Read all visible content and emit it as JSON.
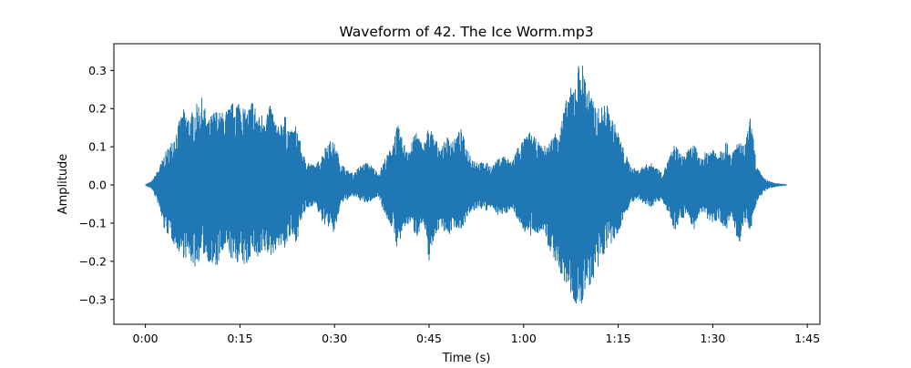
{
  "chart_data": {
    "type": "area",
    "title": "Waveform of 42. The Ice Worm.mp3",
    "xlabel": "Time (s)",
    "ylabel": "Amplitude",
    "xlim": [
      -5,
      107
    ],
    "ylim": [
      -0.365,
      0.37
    ],
    "grid": false,
    "legend": "none",
    "color": "#1f77b4",
    "x_ticks": [
      {
        "value": 0,
        "label": "0:00"
      },
      {
        "value": 15,
        "label": "0:15"
      },
      {
        "value": 30,
        "label": "0:30"
      },
      {
        "value": 45,
        "label": "0:45"
      },
      {
        "value": 60,
        "label": "1:00"
      },
      {
        "value": 75,
        "label": "1:15"
      },
      {
        "value": 90,
        "label": "1:30"
      },
      {
        "value": 105,
        "label": "1:45"
      }
    ],
    "y_ticks": [
      {
        "value": 0.3,
        "label": "0.3"
      },
      {
        "value": 0.2,
        "label": "0.2"
      },
      {
        "value": 0.1,
        "label": "0.1"
      },
      {
        "value": 0.0,
        "label": "0.0"
      },
      {
        "value": -0.1,
        "label": "−0.1"
      },
      {
        "value": -0.2,
        "label": "−0.2"
      },
      {
        "value": -0.3,
        "label": "−0.3"
      }
    ],
    "envelope": {
      "time": [
        0,
        1,
        2,
        3,
        4,
        5,
        6,
        7,
        8,
        9,
        10,
        11,
        12,
        13,
        14,
        15,
        16,
        17,
        18,
        19,
        20,
        21,
        22,
        23,
        24,
        25,
        26,
        27,
        28,
        29,
        30,
        31,
        32,
        33,
        34,
        35,
        36,
        37,
        38,
        39,
        40,
        41,
        42,
        43,
        44,
        45,
        46,
        47,
        48,
        49,
        50,
        51,
        52,
        53,
        54,
        55,
        56,
        57,
        58,
        59,
        60,
        61,
        62,
        63,
        64,
        65,
        66,
        67,
        68,
        69,
        70,
        71,
        72,
        73,
        74,
        75,
        76,
        77,
        78,
        79,
        80,
        81,
        82,
        83,
        84,
        85,
        86,
        87,
        88,
        89,
        90,
        91,
        92,
        93,
        94,
        95,
        96,
        97,
        98,
        99,
        100,
        101,
        101.7
      ],
      "max": [
        0.002,
        0.01,
        0.04,
        0.08,
        0.11,
        0.15,
        0.2,
        0.18,
        0.21,
        0.23,
        0.17,
        0.2,
        0.19,
        0.2,
        0.22,
        0.23,
        0.19,
        0.23,
        0.18,
        0.2,
        0.21,
        0.15,
        0.19,
        0.14,
        0.16,
        0.08,
        0.06,
        0.05,
        0.08,
        0.12,
        0.11,
        0.06,
        0.04,
        0.03,
        0.05,
        0.06,
        0.05,
        0.03,
        0.07,
        0.1,
        0.16,
        0.11,
        0.1,
        0.15,
        0.1,
        0.16,
        0.12,
        0.1,
        0.13,
        0.12,
        0.15,
        0.1,
        0.07,
        0.06,
        0.06,
        0.05,
        0.07,
        0.08,
        0.06,
        0.1,
        0.12,
        0.14,
        0.12,
        0.1,
        0.11,
        0.14,
        0.17,
        0.24,
        0.27,
        0.34,
        0.28,
        0.22,
        0.2,
        0.22,
        0.18,
        0.14,
        0.09,
        0.05,
        0.04,
        0.05,
        0.06,
        0.05,
        0.03,
        0.07,
        0.11,
        0.08,
        0.09,
        0.11,
        0.07,
        0.09,
        0.1,
        0.09,
        0.12,
        0.08,
        0.12,
        0.1,
        0.18,
        0.05,
        0.02,
        0.01,
        0.005,
        0.003,
        0.002
      ],
      "min": [
        -0.002,
        -0.01,
        -0.05,
        -0.12,
        -0.14,
        -0.17,
        -0.19,
        -0.2,
        -0.22,
        -0.18,
        -0.2,
        -0.23,
        -0.19,
        -0.17,
        -0.21,
        -0.2,
        -0.22,
        -0.17,
        -0.21,
        -0.18,
        -0.19,
        -0.16,
        -0.17,
        -0.14,
        -0.15,
        -0.08,
        -0.06,
        -0.05,
        -0.1,
        -0.11,
        -0.13,
        -0.05,
        -0.04,
        -0.03,
        -0.04,
        -0.05,
        -0.04,
        -0.03,
        -0.08,
        -0.11,
        -0.17,
        -0.12,
        -0.1,
        -0.14,
        -0.1,
        -0.2,
        -0.13,
        -0.11,
        -0.14,
        -0.11,
        -0.12,
        -0.09,
        -0.07,
        -0.06,
        -0.07,
        -0.06,
        -0.08,
        -0.08,
        -0.06,
        -0.09,
        -0.12,
        -0.14,
        -0.13,
        -0.12,
        -0.17,
        -0.2,
        -0.25,
        -0.27,
        -0.31,
        -0.34,
        -0.26,
        -0.27,
        -0.22,
        -0.17,
        -0.16,
        -0.13,
        -0.08,
        -0.05,
        -0.04,
        -0.05,
        -0.06,
        -0.05,
        -0.04,
        -0.08,
        -0.12,
        -0.09,
        -0.08,
        -0.12,
        -0.07,
        -0.09,
        -0.1,
        -0.09,
        -0.13,
        -0.08,
        -0.17,
        -0.1,
        -0.12,
        -0.05,
        -0.02,
        -0.01,
        -0.005,
        -0.003,
        -0.002
      ]
    }
  }
}
